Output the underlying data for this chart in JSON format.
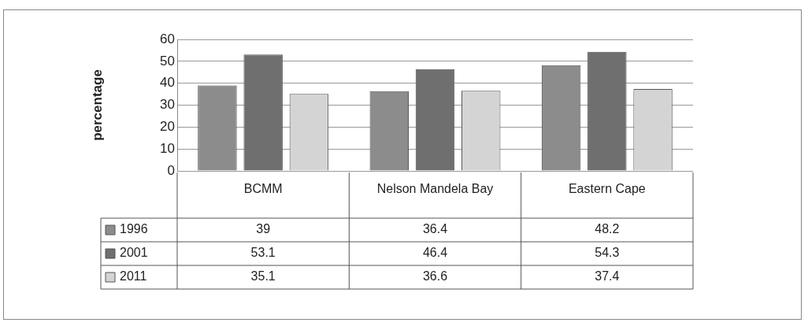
{
  "chart_data": {
    "type": "bar",
    "ylabel": "percentage",
    "categories": [
      "BCMM",
      "Nelson Mandela Bay",
      "Eastern Cape"
    ],
    "series": [
      {
        "name": "1996",
        "color": "#8c8c8c",
        "values": [
          39,
          36.4,
          48.2
        ]
      },
      {
        "name": "2001",
        "color": "#6f6f6f",
        "values": [
          53.1,
          46.4,
          54.3
        ]
      },
      {
        "name": "2011",
        "color": "#d4d4d4",
        "values": [
          35.1,
          36.6,
          37.4
        ]
      }
    ],
    "ylim": [
      0,
      60
    ],
    "yticks": [
      0,
      10,
      20,
      30,
      40,
      50,
      60
    ],
    "grid": "y",
    "legend": "bottom",
    "data_labels": true
  }
}
